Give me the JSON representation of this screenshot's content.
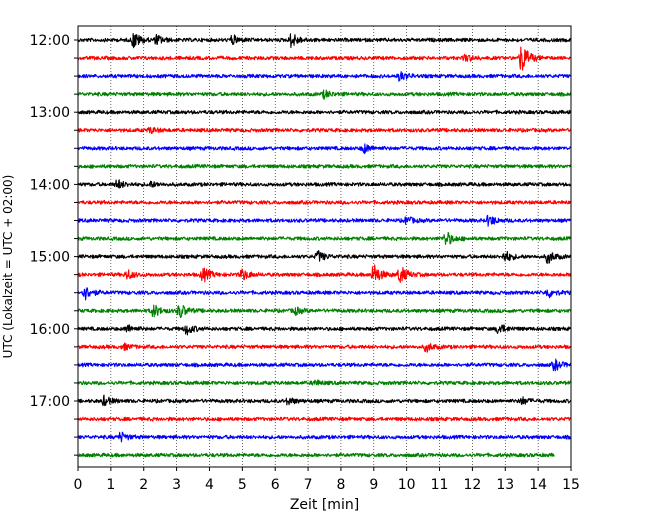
{
  "chart_data": {
    "type": "line",
    "title": "",
    "xlabel": "Zeit  [min]",
    "ylabel": "UTC (Lokalzeit = UTC + 02:00)",
    "xlim": [
      0,
      15
    ],
    "x_ticks": [
      0,
      1,
      2,
      3,
      4,
      5,
      6,
      7,
      8,
      9,
      10,
      11,
      12,
      13,
      14,
      15
    ],
    "x_tick_labels": [
      "0",
      "1",
      "2",
      "3",
      "4",
      "5",
      "6",
      "7",
      "8",
      "9",
      "10",
      "11",
      "12",
      "13",
      "14",
      "15"
    ],
    "y_tick_labels": [
      "12:00",
      "13:00",
      "14:00",
      "15:00",
      "16:00",
      "17:00"
    ],
    "grid": "vertical dotted",
    "color_cycle": [
      "#000000",
      "#ff0000",
      "#0000ff",
      "#008000"
    ],
    "series": [
      {
        "start": "12:00",
        "length_min": 15,
        "bursts": [
          {
            "t": 1.7,
            "amp": 0.9
          },
          {
            "t": 2.4,
            "amp": 0.5
          },
          {
            "t": 4.7,
            "amp": 0.5
          },
          {
            "t": 6.5,
            "amp": 0.8
          }
        ]
      },
      {
        "start": "12:15",
        "length_min": 15,
        "bursts": [
          {
            "t": 13.5,
            "amp": 1.8
          },
          {
            "t": 11.8,
            "amp": 0.4
          }
        ]
      },
      {
        "start": "12:30",
        "length_min": 15,
        "bursts": [
          {
            "t": 9.8,
            "amp": 0.5
          }
        ]
      },
      {
        "start": "12:45",
        "length_min": 15,
        "bursts": [
          {
            "t": 7.5,
            "amp": 0.4
          }
        ]
      },
      {
        "start": "13:00",
        "length_min": 15,
        "bursts": []
      },
      {
        "start": "13:15",
        "length_min": 15,
        "bursts": [
          {
            "t": 2.2,
            "amp": 0.3
          }
        ]
      },
      {
        "start": "13:30",
        "length_min": 15,
        "bursts": [
          {
            "t": 8.7,
            "amp": 0.5
          }
        ]
      },
      {
        "start": "13:45",
        "length_min": 15,
        "bursts": []
      },
      {
        "start": "14:00",
        "length_min": 15,
        "bursts": [
          {
            "t": 1.2,
            "amp": 0.5
          },
          {
            "t": 2.2,
            "amp": 0.3
          }
        ]
      },
      {
        "start": "14:15",
        "length_min": 15,
        "bursts": []
      },
      {
        "start": "14:30",
        "length_min": 15,
        "bursts": [
          {
            "t": 12.5,
            "amp": 0.6
          },
          {
            "t": 10.0,
            "amp": 0.4
          }
        ]
      },
      {
        "start": "14:45",
        "length_min": 15,
        "bursts": [
          {
            "t": 11.2,
            "amp": 0.8
          }
        ]
      },
      {
        "start": "15:00",
        "length_min": 15,
        "bursts": [
          {
            "t": 7.3,
            "amp": 0.6
          },
          {
            "t": 13.0,
            "amp": 0.6
          },
          {
            "t": 14.3,
            "amp": 0.7
          }
        ]
      },
      {
        "start": "15:15",
        "length_min": 15,
        "bursts": [
          {
            "t": 3.8,
            "amp": 0.8
          },
          {
            "t": 9.0,
            "amp": 1.2
          },
          {
            "t": 9.8,
            "amp": 1.0
          },
          {
            "t": 5.0,
            "amp": 0.6
          },
          {
            "t": 1.5,
            "amp": 0.5
          }
        ]
      },
      {
        "start": "15:30",
        "length_min": 15,
        "bursts": [
          {
            "t": 0.2,
            "amp": 0.8
          },
          {
            "t": 14.3,
            "amp": 0.5
          }
        ]
      },
      {
        "start": "15:45",
        "length_min": 15,
        "bursts": [
          {
            "t": 2.3,
            "amp": 0.7
          },
          {
            "t": 3.1,
            "amp": 0.8
          },
          {
            "t": 6.6,
            "amp": 0.4
          }
        ]
      },
      {
        "start": "16:00",
        "length_min": 15,
        "bursts": [
          {
            "t": 3.3,
            "amp": 0.6
          },
          {
            "t": 12.8,
            "amp": 0.6
          },
          {
            "t": 1.5,
            "amp": 0.4
          }
        ]
      },
      {
        "start": "16:15",
        "length_min": 15,
        "bursts": [
          {
            "t": 10.6,
            "amp": 0.5
          },
          {
            "t": 1.4,
            "amp": 0.3
          }
        ]
      },
      {
        "start": "16:30",
        "length_min": 15,
        "bursts": [
          {
            "t": 14.5,
            "amp": 0.6
          }
        ]
      },
      {
        "start": "16:45",
        "length_min": 15,
        "bursts": [
          {
            "t": 7.2,
            "amp": 0.3
          }
        ]
      },
      {
        "start": "17:00",
        "length_min": 15,
        "bursts": [
          {
            "t": 0.8,
            "amp": 0.5
          },
          {
            "t": 6.4,
            "amp": 0.4
          },
          {
            "t": 13.5,
            "amp": 0.4
          }
        ]
      },
      {
        "start": "17:15",
        "length_min": 15,
        "bursts": []
      },
      {
        "start": "17:30",
        "length_min": 15,
        "bursts": [
          {
            "t": 1.3,
            "amp": 0.5
          }
        ]
      },
      {
        "start": "17:45",
        "length_min": 14.5,
        "bursts": []
      }
    ]
  }
}
